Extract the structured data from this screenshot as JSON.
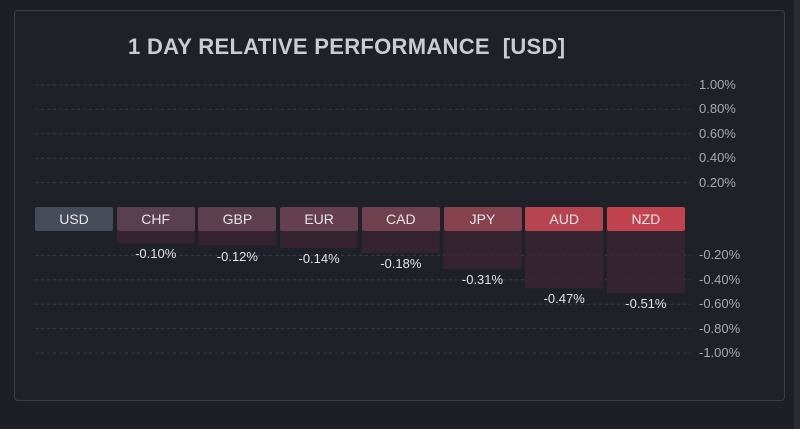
{
  "chart_data": {
    "type": "bar",
    "title": "1 DAY RELATIVE PERFORMANCE  [USD]",
    "categories": [
      "USD",
      "CHF",
      "GBP",
      "EUR",
      "CAD",
      "JPY",
      "AUD",
      "NZD"
    ],
    "values": [
      0,
      -0.1,
      -0.12,
      -0.14,
      -0.18,
      -0.31,
      -0.47,
      -0.51
    ],
    "value_labels": [
      "",
      "-0.10%",
      "-0.12%",
      "-0.14%",
      "-0.18%",
      "-0.31%",
      "-0.47%",
      "-0.51%"
    ],
    "pos_ticks": [
      "1.00%",
      "0.80%",
      "0.60%",
      "0.40%",
      "0.20%"
    ],
    "pos_tick_values": [
      1.0,
      0.8,
      0.6,
      0.4,
      0.2
    ],
    "neg_ticks": [
      "-0.20%",
      "-0.40%",
      "-0.60%",
      "-0.80%",
      "-1.00%"
    ],
    "neg_tick_values": [
      -0.2,
      -0.4,
      -0.6,
      -0.8,
      -1.0
    ],
    "ylim": [
      -1.0,
      1.0
    ],
    "grid": true,
    "unit": "%",
    "colors": [
      "#464b59",
      "#5a3f4e",
      "#5d3f4e",
      "#653f4e",
      "#6f404e",
      "#86424f",
      "#b5444e",
      "#c1434d"
    ],
    "bar_fill": "#3a2530"
  }
}
